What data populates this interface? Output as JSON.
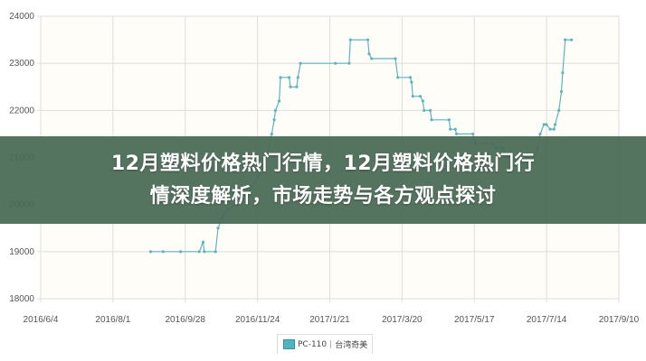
{
  "overlay": {
    "title_line1": "12月塑料价格热门行情，12月塑料价格热门行",
    "title_line2": "情深度解析，市场走势与各方观点探讨"
  },
  "chart_data": {
    "type": "line",
    "title": "",
    "xlabel": "",
    "ylabel": "",
    "xlim": [
      "2016-06-04",
      "2017-09-10"
    ],
    "ylim": [
      18000,
      24000
    ],
    "grid": true,
    "legend_position": "bottom",
    "x_ticks": [
      "2016/6/4",
      "2016/8/1",
      "2016/9/28",
      "2016/11/24",
      "2017/1/21",
      "2017/3/20",
      "2017/5/17",
      "2017/7/14",
      "2017/9/10"
    ],
    "y_ticks": [
      18000,
      19000,
      20000,
      21000,
      22000,
      23000,
      24000
    ],
    "colors": {
      "line": "#5fb4bd",
      "plot_bg": "#fffdf7",
      "grid": "#dddddd"
    },
    "series": [
      {
        "name": "PC-110 | 台湾奇美",
        "points": [
          [
            "2016-08-31",
            19000
          ],
          [
            "2016-09-10",
            19000
          ],
          [
            "2016-09-24",
            19000
          ],
          [
            "2016-10-09",
            19000
          ],
          [
            "2016-10-12",
            19200
          ],
          [
            "2016-10-13",
            19000
          ],
          [
            "2016-10-22",
            19000
          ],
          [
            "2016-10-24",
            19500
          ],
          [
            "2016-10-27",
            19700
          ],
          [
            "2016-11-01",
            19900
          ],
          [
            "2016-11-08",
            20000
          ],
          [
            "2016-11-18",
            20300
          ],
          [
            "2016-11-25",
            20600
          ],
          [
            "2016-12-02",
            21000
          ],
          [
            "2016-12-06",
            21500
          ],
          [
            "2016-12-08",
            21800
          ],
          [
            "2016-12-09",
            22000
          ],
          [
            "2016-12-12",
            22200
          ],
          [
            "2016-12-13",
            22700
          ],
          [
            "2016-12-20",
            22700
          ],
          [
            "2016-12-21",
            22500
          ],
          [
            "2016-12-26",
            22500
          ],
          [
            "2016-12-27",
            22700
          ],
          [
            "2016-12-29",
            23000
          ],
          [
            "2017-01-26",
            23000
          ],
          [
            "2017-02-06",
            23000
          ],
          [
            "2017-02-07",
            23500
          ],
          [
            "2017-02-21",
            23500
          ],
          [
            "2017-02-22",
            23200
          ],
          [
            "2017-02-24",
            23100
          ],
          [
            "2017-03-15",
            23100
          ],
          [
            "2017-03-17",
            22700
          ],
          [
            "2017-03-27",
            22700
          ],
          [
            "2017-03-28",
            22600
          ],
          [
            "2017-03-29",
            22300
          ],
          [
            "2017-04-04",
            22300
          ],
          [
            "2017-04-06",
            22200
          ],
          [
            "2017-04-07",
            22000
          ],
          [
            "2017-04-12",
            22000
          ],
          [
            "2017-04-13",
            21800
          ],
          [
            "2017-04-27",
            21800
          ],
          [
            "2017-04-28",
            21600
          ],
          [
            "2017-05-02",
            21600
          ],
          [
            "2017-05-03",
            21500
          ],
          [
            "2017-05-16",
            21500
          ],
          [
            "2017-05-18",
            21300
          ],
          [
            "2017-06-01",
            21300
          ],
          [
            "2017-06-04",
            21200
          ],
          [
            "2017-06-09",
            21200
          ],
          [
            "2017-06-12",
            21000
          ],
          [
            "2017-07-04",
            21000
          ],
          [
            "2017-07-07",
            21200
          ],
          [
            "2017-07-09",
            21500
          ],
          [
            "2017-07-12",
            21700
          ],
          [
            "2017-07-14",
            21700
          ],
          [
            "2017-07-17",
            21600
          ],
          [
            "2017-07-20",
            21600
          ],
          [
            "2017-07-21",
            21700
          ],
          [
            "2017-07-24",
            22000
          ],
          [
            "2017-07-26",
            22400
          ],
          [
            "2017-07-27",
            22800
          ],
          [
            "2017-07-29",
            23500
          ],
          [
            "2017-08-03",
            23500
          ]
        ]
      }
    ],
    "legend": {
      "code": "PC-110",
      "brand": "台湾奇美"
    }
  }
}
